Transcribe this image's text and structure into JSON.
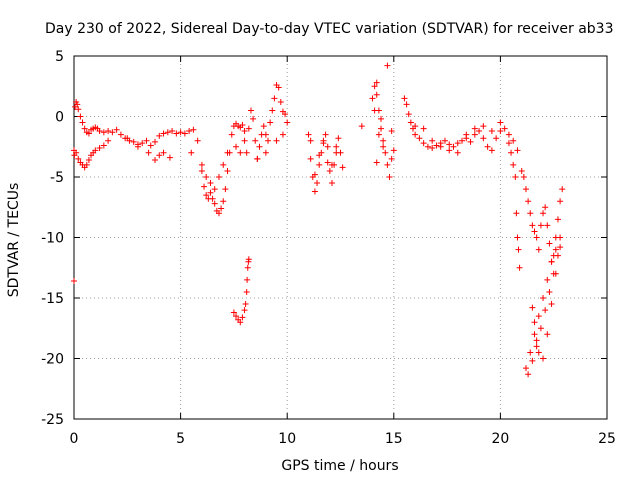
{
  "chart_data": {
    "type": "scatter",
    "title": "Day 230 of 2022, Sidereal Day-to-day VTEC variation (SDTVAR) for receiver ab33",
    "xlabel": "GPS time / hours",
    "ylabel": "SDTVAR / TECUs",
    "xlim": [
      0,
      25
    ],
    "ylim": [
      -25,
      5
    ],
    "xticks": [
      0,
      5,
      10,
      15,
      20,
      25
    ],
    "yticks": [
      5,
      0,
      -5,
      -10,
      -15,
      -20,
      -25
    ],
    "xtick_labels": [
      "0",
      "5",
      "10",
      "15",
      "20",
      "25"
    ],
    "ytick_labels": [
      "5",
      "0",
      "-5",
      "-10",
      "-15",
      "-20",
      "-25"
    ],
    "grid": true,
    "marker": "+",
    "color": "#ff0000",
    "series": [
      {
        "name": "SDTVAR",
        "x": [
          0.0,
          0.05,
          0.1,
          0.15,
          0.2,
          0.3,
          0.4,
          0.5,
          0.6,
          0.7,
          0.8,
          0.9,
          1.0,
          1.1,
          1.2,
          1.4,
          1.6,
          1.8,
          2.0,
          2.2,
          2.4,
          2.6,
          2.8,
          3.0,
          3.2,
          3.4,
          3.6,
          3.8,
          4.0,
          4.2,
          4.4,
          4.6,
          4.8,
          5.0,
          5.2,
          5.4,
          5.6,
          5.8,
          6.0,
          6.1,
          6.2,
          6.3,
          6.4,
          6.5,
          6.6,
          6.7,
          6.8,
          6.9,
          7.0,
          7.1,
          7.2,
          7.3,
          7.4,
          7.5,
          7.6,
          7.7,
          7.8,
          7.9,
          8.0,
          8.1,
          8.2,
          8.3,
          8.4,
          8.5,
          8.6,
          8.7,
          8.8,
          8.9,
          9.0,
          9.1,
          9.2,
          9.3,
          9.4,
          9.5,
          9.6,
          9.7,
          9.8,
          9.9,
          10.0,
          0.02,
          0.1,
          0.2,
          0.3,
          0.4,
          0.5,
          0.6,
          0.7,
          0.8,
          0.9,
          1.0,
          1.2,
          1.4,
          1.6,
          2.5,
          3.0,
          3.5,
          3.8,
          4.0,
          4.2,
          4.5,
          5.5,
          6.0,
          6.2,
          6.4,
          6.6,
          6.8,
          7.0,
          7.2,
          7.6,
          7.8,
          8.0,
          8.6,
          9.0,
          9.5,
          9.8,
          7.5,
          7.6,
          7.7,
          7.8,
          7.9,
          8.0,
          8.05,
          8.1,
          8.12,
          8.15,
          8.18,
          8.2,
          11.0,
          11.1,
          11.2,
          11.3,
          11.4,
          11.5,
          11.6,
          11.7,
          11.8,
          11.9,
          12.0,
          12.1,
          12.2,
          12.3,
          12.4,
          12.5,
          12.6,
          11.1,
          11.3,
          11.5,
          11.7,
          11.9,
          12.1,
          12.3,
          13.5,
          14.0,
          14.1,
          14.2,
          14.3,
          14.4,
          14.5,
          14.6,
          14.7,
          14.8,
          14.9,
          15.0,
          14.1,
          14.3,
          14.5,
          14.7,
          14.9,
          14.2,
          14.4,
          15.5,
          15.6,
          15.7,
          15.8,
          15.9,
          16.0,
          16.2,
          16.4,
          16.6,
          16.8,
          17.0,
          17.2,
          17.4,
          17.6,
          17.8,
          18.0,
          18.2,
          18.4,
          18.6,
          18.8,
          19.0,
          19.2,
          19.4,
          19.6,
          19.8,
          20.0,
          20.2,
          20.4,
          20.6,
          20.8,
          16.0,
          16.4,
          16.8,
          17.2,
          17.6,
          18.0,
          18.4,
          18.8,
          19.2,
          19.6,
          20.0,
          20.4,
          20.5,
          20.6,
          20.7,
          20.75,
          20.8,
          20.85,
          20.9,
          21.0,
          21.1,
          21.2,
          21.3,
          21.4,
          21.5,
          21.6,
          21.7,
          21.8,
          21.9,
          22.0,
          22.1,
          22.2,
          22.3,
          22.4,
          22.5,
          22.6,
          22.7,
          22.8,
          22.9,
          21.2,
          21.4,
          21.6,
          21.8,
          22.0,
          22.2,
          22.4,
          22.6,
          22.8,
          21.3,
          21.5,
          21.7,
          21.9,
          22.1,
          22.3,
          22.5,
          22.7,
          21.5,
          21.6,
          21.7,
          21.8,
          22.0,
          22.2,
          22.4,
          22.6,
          22.8,
          0.0,
          14.2
        ],
        "y": [
          -2.8,
          0.8,
          1.2,
          1.0,
          0.6,
          0.0,
          -0.5,
          -1.0,
          -1.3,
          -1.4,
          -1.1,
          -1.0,
          -0.9,
          -1.0,
          -1.2,
          -1.3,
          -1.2,
          -1.3,
          -1.1,
          -1.5,
          -1.8,
          -2.0,
          -2.1,
          -2.3,
          -2.2,
          -2.0,
          -2.4,
          -2.1,
          -1.6,
          -1.4,
          -1.3,
          -1.2,
          -1.4,
          -1.3,
          -1.4,
          -1.2,
          -1.1,
          -2.0,
          -4.5,
          -5.8,
          -6.5,
          -6.8,
          -6.3,
          -6.8,
          -7.2,
          -7.8,
          -8.0,
          -7.6,
          -7.0,
          -6.0,
          -4.5,
          -3.0,
          -1.5,
          -0.8,
          -0.6,
          -0.8,
          -0.9,
          -0.7,
          -1.2,
          -3.0,
          -1.0,
          0.5,
          -0.2,
          -2.0,
          -3.5,
          -2.5,
          -1.5,
          -0.8,
          -1.5,
          -2.0,
          -0.5,
          0.5,
          1.5,
          2.6,
          2.4,
          1.2,
          0.4,
          0.2,
          -0.5,
          -3.2,
          -3.0,
          -3.5,
          -3.8,
          -4.0,
          -4.2,
          -4.0,
          -3.6,
          -3.2,
          -3.0,
          -2.8,
          -2.6,
          -2.4,
          -2.0,
          -1.8,
          -2.5,
          -3.0,
          -3.6,
          -3.2,
          -3.0,
          -3.4,
          -3.0,
          -4.0,
          -5.0,
          -5.5,
          -6.0,
          -5.0,
          -4.0,
          -3.0,
          -2.5,
          -3.0,
          -2.0,
          -3.5,
          -3.0,
          -2.0,
          -1.5,
          -16.2,
          -16.5,
          -16.8,
          -17.0,
          -16.6,
          -16.0,
          -15.5,
          -14.5,
          -13.5,
          -12.5,
          -12.0,
          -11.8,
          -1.5,
          -3.5,
          -5.0,
          -6.2,
          -5.5,
          -4.0,
          -3.0,
          -2.0,
          -1.5,
          -2.5,
          -4.5,
          -5.5,
          -4.0,
          -2.5,
          -1.8,
          -3.0,
          -4.2,
          -2.0,
          -4.8,
          -3.2,
          -2.2,
          -3.8,
          -4.0,
          -3.0,
          -0.8,
          1.5,
          2.5,
          1.8,
          0.5,
          -1.0,
          -2.0,
          -3.0,
          -4.0,
          -5.0,
          -3.5,
          -2.8,
          0.5,
          -1.5,
          -2.5,
          4.2,
          -1.2,
          -3.8,
          -0.2,
          1.5,
          1.0,
          0.2,
          -0.5,
          -1.0,
          -1.5,
          -1.8,
          -2.2,
          -2.5,
          -2.6,
          -2.4,
          -2.2,
          -2.0,
          -2.3,
          -2.5,
          -2.2,
          -2.0,
          -1.8,
          -2.1,
          -1.5,
          -1.2,
          -1.8,
          -2.5,
          -2.8,
          -1.8,
          -1.2,
          -1.0,
          -1.5,
          -2.0,
          -2.8,
          -0.8,
          -1.0,
          -2.0,
          -2.5,
          -2.8,
          -3.0,
          -1.5,
          -1.0,
          -0.8,
          -1.2,
          -0.5,
          -2.2,
          -3.0,
          -4.0,
          -5.0,
          -8.0,
          -10.0,
          -11.0,
          -12.5,
          -4.5,
          -5.0,
          -6.0,
          -7.0,
          -8.0,
          -9.0,
          -9.5,
          -10.0,
          -11.0,
          -9.0,
          -8.0,
          -7.5,
          -9.0,
          -10.5,
          -12.0,
          -11.5,
          -10.0,
          -8.5,
          -7.0,
          -6.0,
          -20.8,
          -19.5,
          -18.0,
          -16.5,
          -15.0,
          -13.5,
          -12.0,
          -11.0,
          -10.0,
          -21.3,
          -20.2,
          -19.0,
          -17.5,
          -16.0,
          -14.5,
          -13.0,
          -11.5,
          -15.8,
          -17.0,
          -18.5,
          -19.5,
          -20.0,
          -18.0,
          -15.5,
          -13.0,
          -10.8,
          -13.6,
          2.8
        ]
      }
    ]
  }
}
